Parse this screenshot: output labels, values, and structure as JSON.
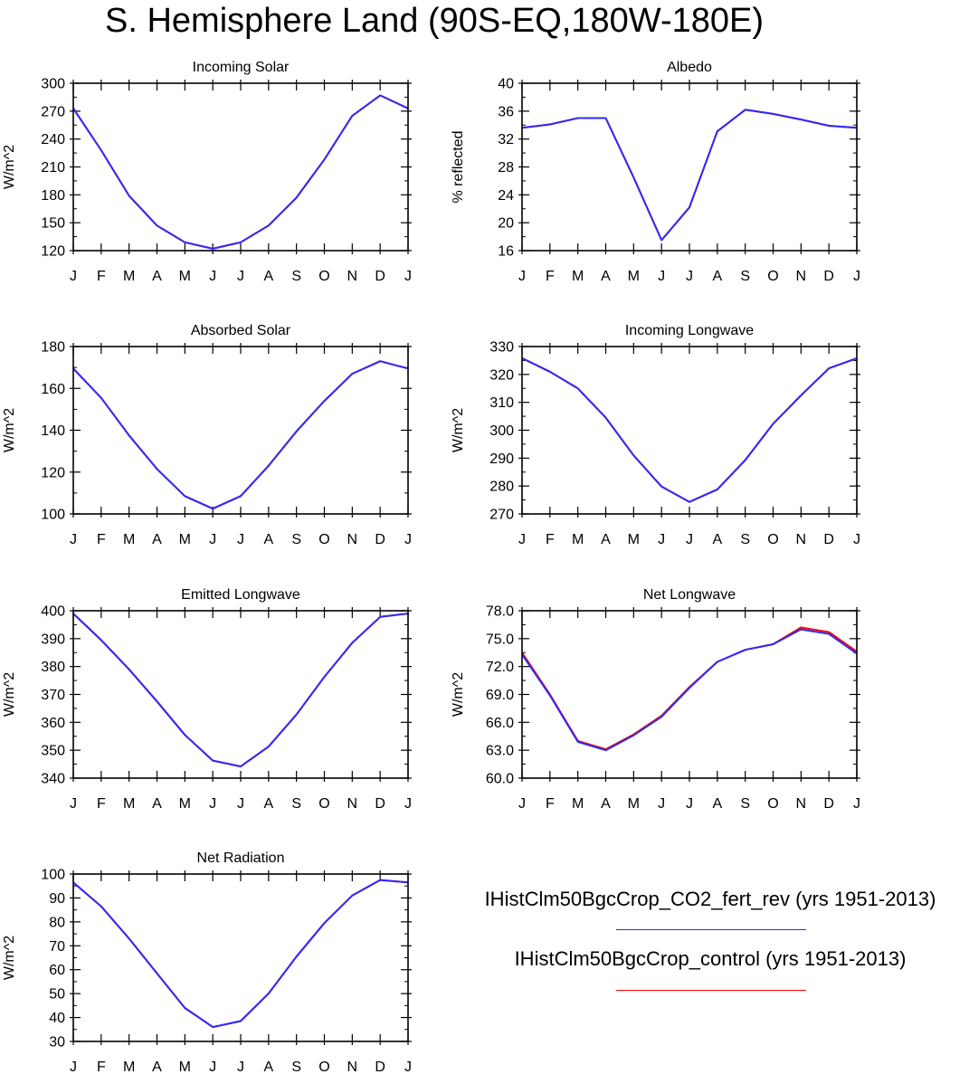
{
  "title": "S. Hemisphere Land (90S-EQ,180W-180E)",
  "colors": {
    "series_a": "#2b2bff",
    "series_b": "#ff0000",
    "axis": "#000000"
  },
  "legend": [
    {
      "label": "IHistClm50BgcCrop_CO2_fert_rev (yrs 1951-2013)",
      "color": "#2b2bff"
    },
    {
      "label": "IHistClm50BgcCrop_control (yrs 1951-2013)",
      "color": "#ff0000"
    }
  ],
  "chart_data": [
    {
      "type": "line",
      "title": "Incoming Solar",
      "ylabel": "W/m^2",
      "categories": [
        "J",
        "F",
        "M",
        "A",
        "M",
        "J",
        "J",
        "A",
        "S",
        "O",
        "N",
        "D",
        "J"
      ],
      "ylim": [
        120,
        300
      ],
      "yticks": [
        120,
        150,
        180,
        210,
        240,
        270,
        300
      ],
      "ytick_labels": [
        "120",
        "150",
        "180",
        "210",
        "240",
        "270",
        "300"
      ],
      "series": [
        {
          "values": [
            273,
            228,
            179,
            147,
            129,
            122,
            129,
            147,
            177,
            218,
            265,
            287,
            273
          ]
        },
        {
          "values": [
            273,
            228,
            179,
            147,
            129,
            122,
            129,
            147,
            177,
            218,
            265,
            287,
            273
          ]
        }
      ]
    },
    {
      "type": "line",
      "title": "Albedo",
      "ylabel": "% reflected",
      "categories": [
        "J",
        "F",
        "M",
        "A",
        "M",
        "J",
        "J",
        "A",
        "S",
        "O",
        "N",
        "D",
        "J"
      ],
      "ylim": [
        16,
        40
      ],
      "yticks": [
        16,
        20,
        24,
        28,
        32,
        36,
        40
      ],
      "ytick_labels": [
        "16",
        "20",
        "24",
        "28",
        "32",
        "36",
        "40"
      ],
      "series": [
        {
          "values": [
            33.6,
            34.1,
            35.0,
            35.0,
            26.5,
            17.5,
            22.2,
            33.1,
            36.2,
            35.6,
            34.8,
            33.9,
            33.6
          ]
        },
        {
          "values": [
            33.6,
            34.1,
            35.0,
            35.0,
            26.5,
            17.5,
            22.2,
            33.1,
            36.2,
            35.6,
            34.8,
            33.9,
            33.6
          ]
        }
      ]
    },
    {
      "type": "line",
      "title": "Absorbed Solar",
      "ylabel": "W/m^2",
      "categories": [
        "J",
        "F",
        "M",
        "A",
        "M",
        "J",
        "J",
        "A",
        "S",
        "O",
        "N",
        "D",
        "J"
      ],
      "ylim": [
        100,
        180
      ],
      "yticks": [
        100,
        120,
        140,
        160,
        180
      ],
      "ytick_labels": [
        "100",
        "120",
        "140",
        "160",
        "180"
      ],
      "series": [
        {
          "values": [
            169.5,
            155.5,
            137.5,
            121.5,
            108.5,
            102.5,
            108.5,
            123,
            139.5,
            154,
            167,
            173,
            169.5
          ]
        },
        {
          "values": [
            169.5,
            155.5,
            137.5,
            121.5,
            108.5,
            102.5,
            108.5,
            123,
            139.5,
            154,
            167,
            173,
            169.5
          ]
        }
      ]
    },
    {
      "type": "line",
      "title": "Incoming Longwave",
      "ylabel": "W/m^2",
      "categories": [
        "J",
        "F",
        "M",
        "A",
        "M",
        "J",
        "J",
        "A",
        "S",
        "O",
        "N",
        "D",
        "J"
      ],
      "ylim": [
        270,
        330
      ],
      "yticks": [
        270,
        280,
        290,
        300,
        310,
        320,
        330
      ],
      "ytick_labels": [
        "270",
        "280",
        "290",
        "300",
        "310",
        "320",
        "330"
      ],
      "series": [
        {
          "values": [
            325.8,
            321,
            315,
            304.5,
            291,
            279.8,
            274.3,
            278.8,
            289.3,
            302.3,
            312.5,
            322.2,
            325.8
          ]
        },
        {
          "values": [
            325.8,
            321,
            315,
            304.5,
            291,
            279.8,
            274.3,
            278.8,
            289.3,
            302.3,
            312.5,
            322.2,
            325.8
          ]
        }
      ]
    },
    {
      "type": "line",
      "title": "Emitted Longwave",
      "ylabel": "W/m^2",
      "categories": [
        "J",
        "F",
        "M",
        "A",
        "M",
        "J",
        "J",
        "A",
        "S",
        "O",
        "N",
        "D",
        "J"
      ],
      "ylim": [
        340,
        400
      ],
      "yticks": [
        340,
        350,
        360,
        370,
        380,
        390,
        400
      ],
      "ytick_labels": [
        "340",
        "350",
        "360",
        "370",
        "380",
        "390",
        "400"
      ],
      "series": [
        {
          "values": [
            399,
            389.5,
            379,
            367.5,
            355.5,
            346.3,
            344.2,
            351.3,
            362.8,
            376.3,
            388.5,
            397.8,
            399
          ]
        },
        {
          "values": [
            399,
            389.5,
            379,
            367.5,
            355.5,
            346.3,
            344.2,
            351.3,
            362.8,
            376.3,
            388.5,
            397.8,
            399
          ]
        }
      ]
    },
    {
      "type": "line",
      "title": "Net Longwave",
      "ylabel": "W/m^2",
      "categories": [
        "J",
        "F",
        "M",
        "A",
        "M",
        "J",
        "J",
        "A",
        "S",
        "O",
        "N",
        "D",
        "J"
      ],
      "ylim": [
        60,
        78
      ],
      "yticks": [
        60,
        63,
        66,
        69,
        72,
        75,
        78
      ],
      "ytick_labels": [
        "60.0",
        "63.0",
        "66.0",
        "69.0",
        "72.0",
        "75.0",
        "78.0"
      ],
      "series": [
        {
          "values": [
            73.3,
            68.9,
            63.9,
            63.0,
            64.6,
            66.6,
            69.7,
            72.5,
            73.8,
            74.4,
            76.0,
            75.5,
            73.4
          ]
        },
        {
          "values": [
            73.5,
            69.0,
            64.0,
            63.1,
            64.7,
            66.7,
            69.8,
            72.5,
            73.8,
            74.4,
            76.2,
            75.7,
            73.6
          ]
        }
      ]
    },
    {
      "type": "line",
      "title": "Net Radiation",
      "ylabel": "W/m^2",
      "categories": [
        "J",
        "F",
        "M",
        "A",
        "M",
        "J",
        "J",
        "A",
        "S",
        "O",
        "N",
        "D",
        "J"
      ],
      "ylim": [
        30,
        100
      ],
      "yticks": [
        30,
        40,
        50,
        60,
        70,
        80,
        90,
        100
      ],
      "ytick_labels": [
        "30",
        "40",
        "50",
        "60",
        "70",
        "80",
        "90",
        "100"
      ],
      "series": [
        {
          "values": [
            96.5,
            86.5,
            73,
            58.5,
            44,
            36,
            38.5,
            50,
            65.5,
            79.5,
            91,
            97.5,
            96.5
          ]
        },
        {
          "values": [
            96.5,
            86.5,
            73,
            58.5,
            44,
            36,
            38.5,
            50,
            65.5,
            79.5,
            91,
            97.5,
            96.5
          ]
        }
      ]
    }
  ]
}
